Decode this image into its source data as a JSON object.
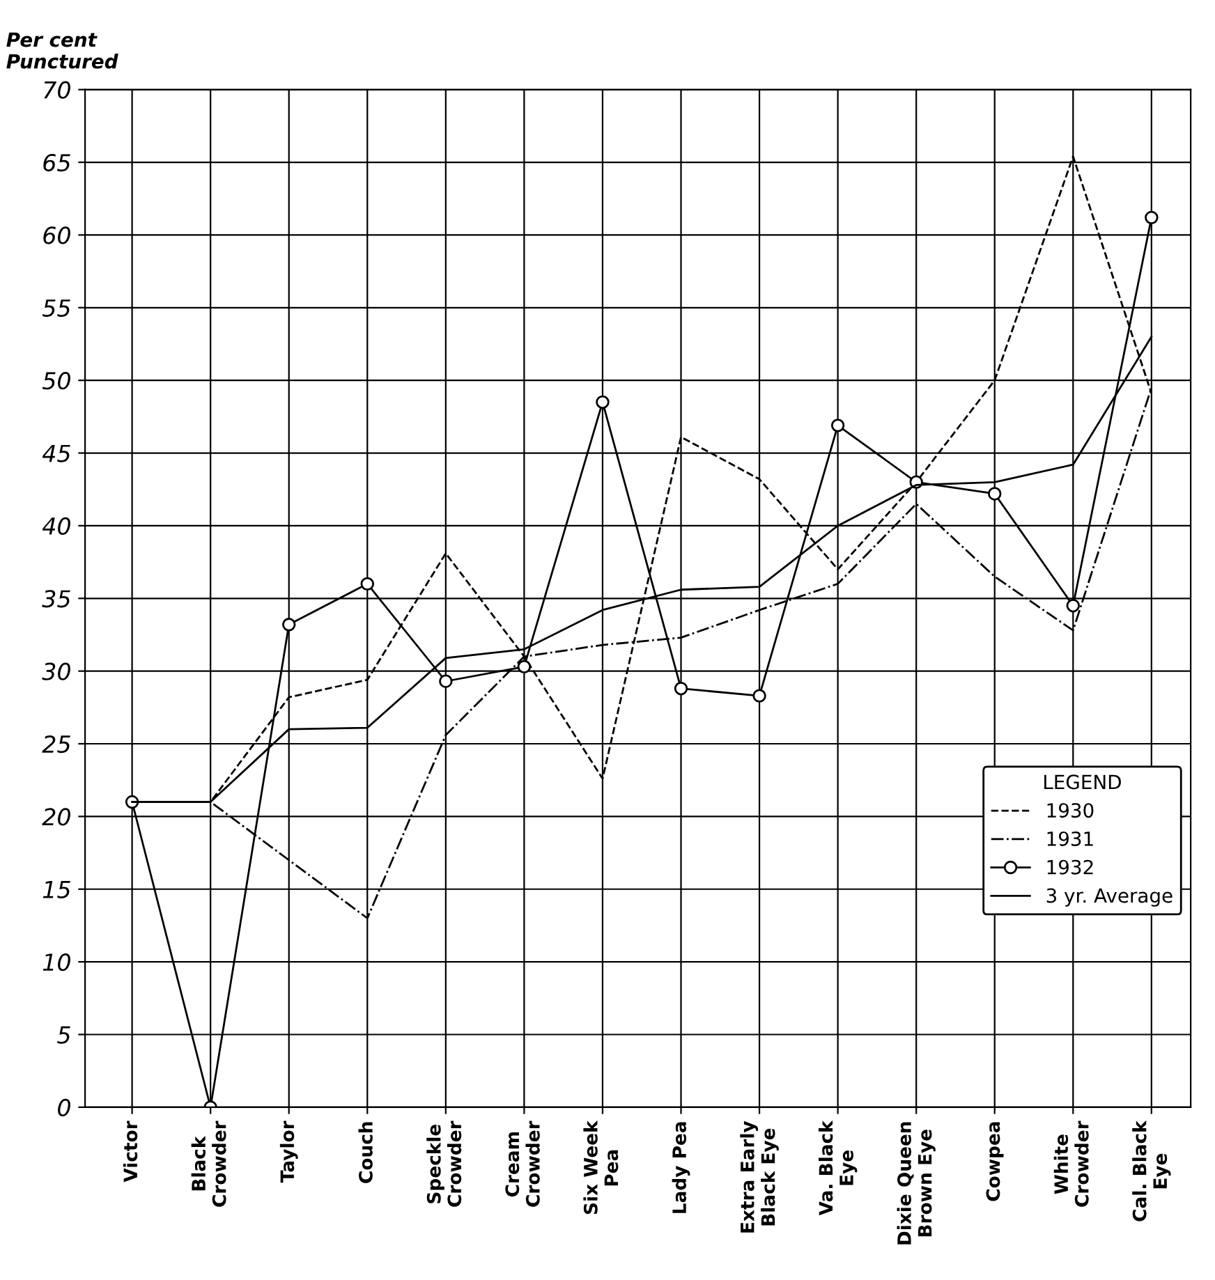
{
  "chart_data": {
    "type": "line",
    "ylabel": "Per cent\nPunctured",
    "legend_title": "LEGEND",
    "legend": "lower right",
    "grid": true,
    "categories": [
      "Victor",
      "Black\nCrowder",
      "Taylor",
      "Couch",
      "Speckle\nCrowder",
      "Cream\nCrowder",
      "Six Week\nPea",
      "Lady Pea",
      "Extra Early\nBlack Eye",
      "Va. Black\nEye",
      "Dixie Queen\nBrown Eye",
      "Cowpea",
      "White\nCrowder",
      "Cal. Black\nEye"
    ],
    "ylim": [
      0,
      70
    ],
    "yticks": [
      0,
      5,
      10,
      15,
      20,
      25,
      30,
      35,
      40,
      45,
      50,
      55,
      60,
      65,
      70
    ],
    "series": [
      {
        "name": "1930",
        "color": "#000000",
        "line_style": "dashed",
        "marker": "none",
        "values": [
          21,
          21,
          28.2,
          29.4,
          38.1,
          31,
          22.6,
          46.1,
          43.2,
          37,
          43,
          50,
          65.4,
          49.1
        ]
      },
      {
        "name": "1931",
        "color": "#000000",
        "line_style": "dashdot",
        "marker": "none",
        "values": [
          21,
          21,
          17,
          13,
          25.6,
          31,
          31.8,
          32.3,
          34.2,
          36,
          41.5,
          36.5,
          32.8,
          49.5
        ]
      },
      {
        "name": "1932",
        "color": "#000000",
        "line_style": "solid",
        "marker": "circle",
        "values": [
          21,
          0,
          33.2,
          36,
          29.3,
          30.3,
          48.5,
          28.8,
          28.3,
          46.9,
          43,
          42.2,
          34.5,
          61.2
        ]
      },
      {
        "name": "3 yr. Average",
        "color": "#000000",
        "line_style": "solid",
        "marker": "none",
        "values": [
          21,
          21,
          26,
          26.1,
          30.9,
          31.5,
          34.2,
          35.6,
          35.8,
          40,
          42.8,
          43,
          44.2,
          53
        ]
      }
    ]
  }
}
